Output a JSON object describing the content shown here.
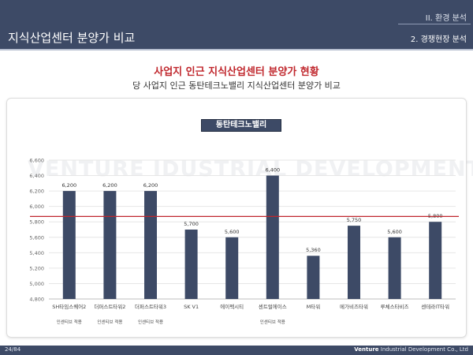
{
  "header": {
    "slide_title": "지식산업센터 분양가 비교",
    "section": "II. 환경 분석",
    "subsection": "2. 경쟁현장 분석"
  },
  "footer": {
    "page": "24/84",
    "company_bold": "Venture",
    "company_rest": " Industrial Development Co., Ltd"
  },
  "watermark": "VENTURE IDUSTRIAL DEVELOPMENT",
  "colors": {
    "bar": "#3d4a66",
    "reference_line": "#c0272d",
    "header": "#3d4a66"
  },
  "chart_data": {
    "type": "bar",
    "title": "사업지 인근 지식산업센터 분양가 현황",
    "subtitle": "당 사업지 인근 동탄테크노밸리 지식산업센터 분양가 비교",
    "series": [
      {
        "name": "동탄테크노밸리",
        "values": [
          6200,
          6200,
          6200,
          5700,
          5600,
          6400,
          5360,
          5750,
          5600,
          5800
        ],
        "value_labels": [
          "6,200",
          "6,200",
          "6,200",
          "5,700",
          "5,600",
          "6,400",
          "5,360",
          "5,750",
          "5,600",
          "5,800"
        ]
      }
    ],
    "categories": [
      "SH타임스퀘어2",
      "더퍼스트타워2",
      "더퍼스트타워3",
      "SK V1",
      "에이펙시티",
      "센트럴에이스",
      "M타워",
      "메가비즈타워",
      "루체스타비즈",
      "센테라IT타워"
    ],
    "notes": [
      "인센티브 적용",
      "인센티브 적용",
      "인센티브 적용",
      "",
      "",
      "인센티브 적용",
      "",
      "",
      "",
      ""
    ],
    "y_ticks": [
      "4,800",
      "5,000",
      "5,200",
      "5,400",
      "5,600",
      "5,800",
      "6,000",
      "6,200",
      "6,400",
      "6,600"
    ],
    "ylim": [
      4800,
      6600
    ],
    "reference_line": 5870,
    "grid": true,
    "legend": "top-center",
    "xlabel": "",
    "ylabel": ""
  }
}
